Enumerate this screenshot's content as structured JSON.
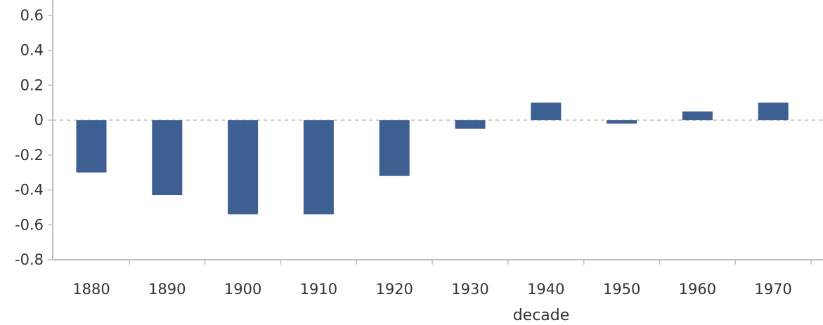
{
  "chart_data": {
    "type": "bar",
    "xlabel": "decade",
    "ylabel": "",
    "categories": [
      "1880",
      "1890",
      "1900",
      "1910",
      "1920",
      "1930",
      "1940",
      "1950",
      "1960",
      "1970"
    ],
    "values": [
      -0.3,
      -0.43,
      -0.54,
      -0.54,
      -0.32,
      -0.05,
      0.1,
      -0.02,
      0.05,
      0.1
    ],
    "ylim": [
      -0.8,
      0.6
    ],
    "yticks": [
      0.6,
      0.4,
      0.2,
      0,
      -0.2,
      -0.4,
      -0.6,
      -0.8
    ],
    "ytick_labels": [
      "0.6",
      "0.4",
      "0.2",
      "0",
      "-0.2",
      "-0.4",
      "-0.6",
      "-0.8"
    ],
    "zero_line": "dashed",
    "grid": false,
    "legend": "none",
    "colors": {
      "bar": "#3d5f92",
      "axis": "#bfbfbf",
      "zero_line": "#bdbdbd",
      "text": "#333333"
    }
  }
}
